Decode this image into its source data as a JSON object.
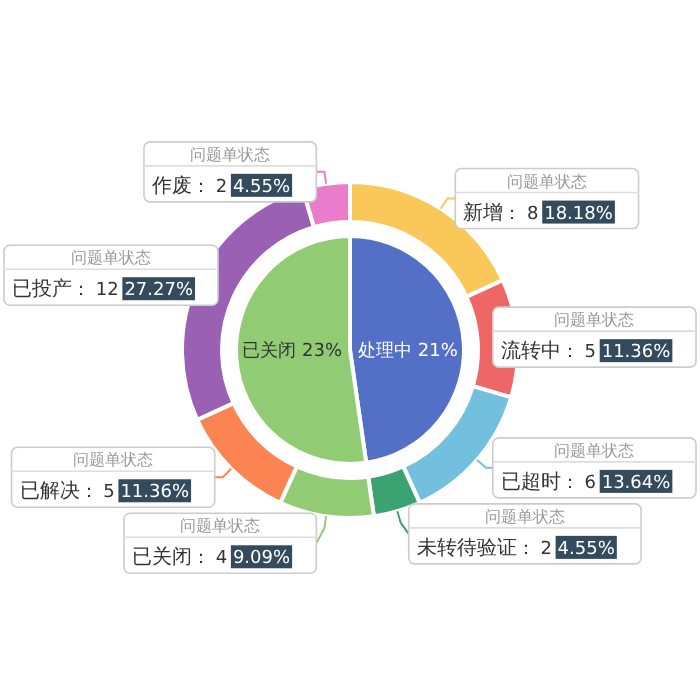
{
  "chart_data": [
    {
      "type": "pie",
      "categories": [
        "处理中",
        "已关闭"
      ],
      "values": [
        21,
        23
      ],
      "colors": [
        "#5470c6",
        "#91cc75"
      ],
      "value_labels": [
        "21%",
        "23%"
      ]
    },
    {
      "type": "donut",
      "legend_title": "问题单状态",
      "categories": [
        "新增",
        "流转中",
        "已超时",
        "未转待验证",
        "已关闭",
        "已解决",
        "已投产",
        "作废"
      ],
      "values": [
        8,
        5,
        6,
        2,
        4,
        5,
        12,
        2
      ],
      "colors": [
        "#fac858",
        "#ee6666",
        "#73c0de",
        "#3ba272",
        "#91cc75",
        "#fc8452",
        "#9a60b4",
        "#ea7ccc"
      ],
      "value_labels": [
        "： 8 18.18%",
        "： 5 11.36%",
        "： 6 13.64%",
        "： 2 4.55%",
        "： 4 9.09%",
        "： 5 11.36%",
        "： 12 27.27%",
        "： 2 4.55%"
      ]
    }
  ]
}
